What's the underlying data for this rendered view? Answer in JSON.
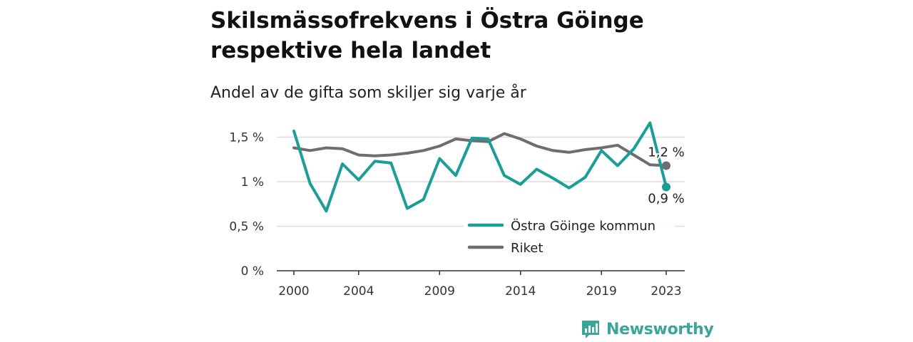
{
  "header": {
    "title": "Skilsmässofrekvens i Östra Göinge respektive hela landet",
    "subtitle": "Andel av de gifta som skiljer sig varje år"
  },
  "brand": {
    "name": "Newsworthy",
    "icon": "bar-chart-speech-bubble-icon",
    "color": "#3aa59b"
  },
  "chart_data": {
    "type": "line",
    "x": [
      2000,
      2001,
      2002,
      2003,
      2004,
      2005,
      2006,
      2007,
      2008,
      2009,
      2010,
      2011,
      2012,
      2013,
      2014,
      2015,
      2016,
      2017,
      2018,
      2019,
      2020,
      2021,
      2022,
      2023
    ],
    "xticks": [
      2000,
      2004,
      2009,
      2014,
      2019,
      2023
    ],
    "xtick_labels": [
      "2000",
      "2004",
      "2009",
      "2014",
      "2019",
      "2023"
    ],
    "yticks": [
      0,
      0.5,
      1,
      1.5
    ],
    "ytick_labels": [
      "0 %",
      "0,5 %",
      "1 %",
      "1,5 %"
    ],
    "xlim": [
      2000,
      2023
    ],
    "ylim": [
      0,
      1.6
    ],
    "grid": "horizontal",
    "legend_position": "bottom-right",
    "series": [
      {
        "name": "Östra Göinge kommun",
        "color": "#1a9e96",
        "values": [
          1.57,
          0.98,
          0.67,
          1.2,
          1.02,
          1.23,
          1.21,
          0.7,
          0.8,
          1.26,
          1.07,
          1.49,
          1.48,
          1.07,
          0.97,
          1.14,
          1.04,
          0.93,
          1.05,
          1.35,
          1.18,
          1.37,
          1.66,
          0.94
        ],
        "end_label": "0,9 %"
      },
      {
        "name": "Riket",
        "color": "#6f6d72",
        "values": [
          1.38,
          1.35,
          1.38,
          1.37,
          1.3,
          1.29,
          1.3,
          1.32,
          1.35,
          1.4,
          1.48,
          1.46,
          1.45,
          1.54,
          1.48,
          1.4,
          1.35,
          1.33,
          1.36,
          1.38,
          1.41,
          1.3,
          1.19,
          1.18
        ],
        "end_label": "1,2 %"
      }
    ]
  }
}
